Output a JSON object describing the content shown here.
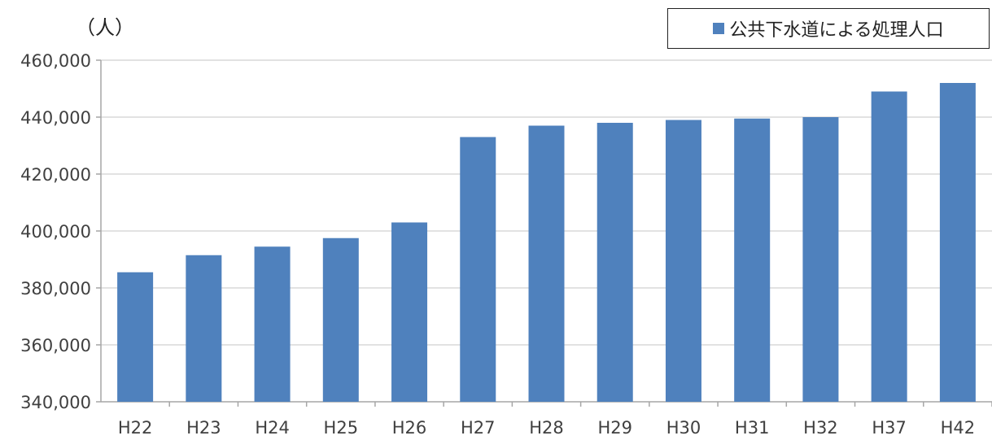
{
  "chart_data": {
    "type": "bar",
    "unit_label": "（人）",
    "categories": [
      "H22",
      "H23",
      "H24",
      "H25",
      "H26",
      "H27",
      "H28",
      "H29",
      "H30",
      "H31",
      "H32",
      "H37",
      "H42"
    ],
    "series": [
      {
        "name": "公共下水道による処理人口",
        "color": "#4F81BD",
        "values": [
          385500,
          391500,
          394500,
          397500,
          403000,
          433000,
          437000,
          438000,
          439000,
          439500,
          440000,
          449000,
          452000
        ]
      }
    ],
    "ylim": [
      340000,
      460000
    ],
    "yticks": [
      "340,000",
      "360,000",
      "380,000",
      "400,000",
      "420,000",
      "440,000",
      "460,000"
    ],
    "ytick_values": [
      340000,
      360000,
      380000,
      400000,
      420000,
      440000,
      460000
    ],
    "grid": true,
    "legend_position": "top-right",
    "xlabel": "",
    "ylabel": ""
  }
}
